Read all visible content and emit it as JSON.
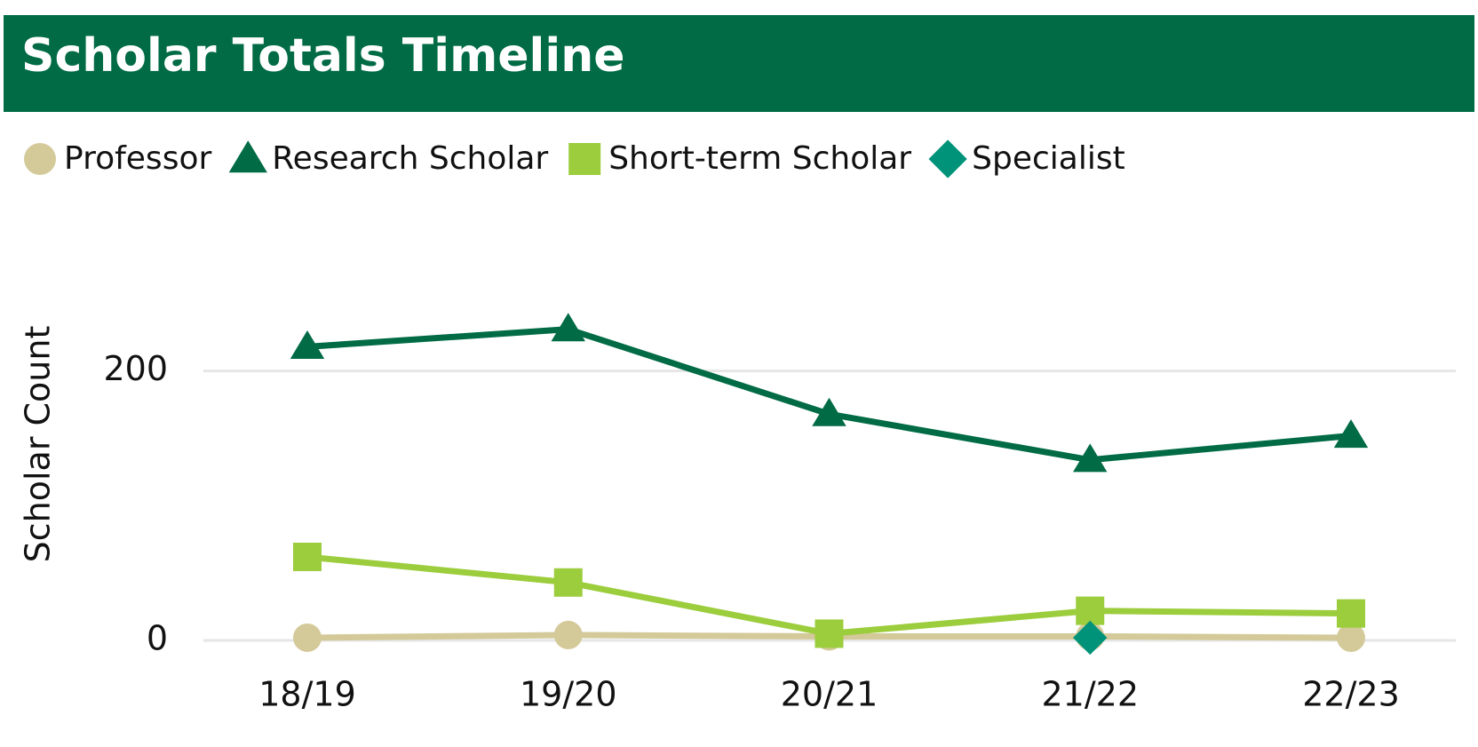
{
  "chart_data": {
    "type": "line",
    "title": "Scholar Totals Timeline",
    "y_label": "Scholar Count",
    "categories": [
      "18/19",
      "19/20",
      "20/21",
      "21/22",
      "22/23"
    ],
    "series": [
      {
        "name": "Professor",
        "color": "#d4c999",
        "marker": "circle",
        "values": [
          2,
          4,
          3,
          3,
          2
        ]
      },
      {
        "name": "Research Scholar",
        "color": "#006b45",
        "marker": "triangle",
        "values": [
          218,
          231,
          168,
          134,
          152
        ]
      },
      {
        "name": "Short-term Scholar",
        "color": "#9bcd3d",
        "marker": "square",
        "values": [
          62,
          43,
          5,
          22,
          20
        ]
      },
      {
        "name": "Specialist",
        "color": "#00937a",
        "marker": "diamond",
        "values": [
          null,
          null,
          null,
          2,
          null
        ]
      }
    ],
    "ylim": [
      0,
      300
    ],
    "yticks": [
      0,
      200
    ],
    "grid": true,
    "legend": "top-left",
    "header_color": "#006b45"
  }
}
